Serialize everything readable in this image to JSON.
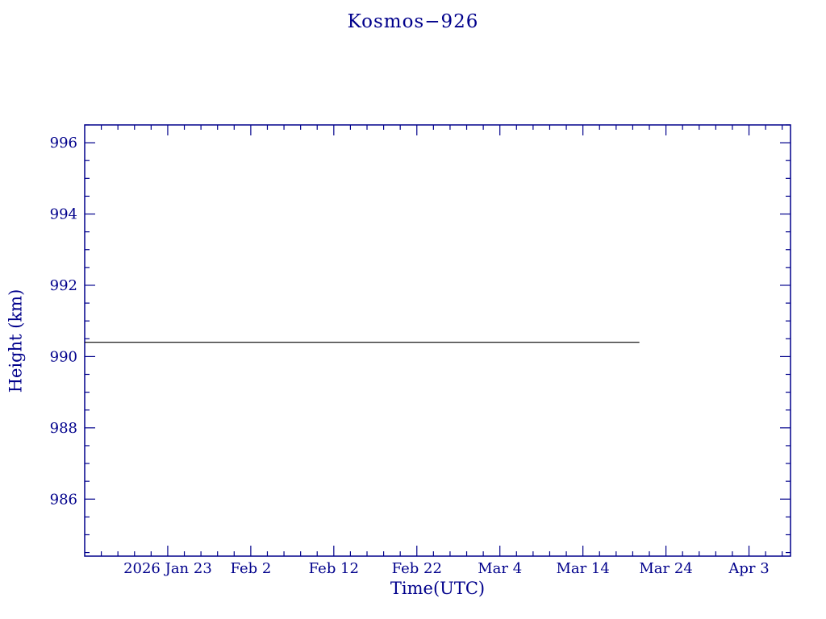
{
  "window": {
    "background": "#ffffff"
  },
  "chart_data": {
    "type": "line",
    "title": "Kosmos−926",
    "xlabel": "Time(UTC)",
    "ylabel": "Height (km)",
    "axis_color": "#00008b",
    "text_color": "#00008b",
    "grid": false,
    "legend": false,
    "x_unit": "days from plot left edge (tick '2026 Jan 23' = day 10)",
    "x_domain_days": [
      0,
      85
    ],
    "x_minor_step": 2,
    "x_ticks": [
      {
        "day": 10,
        "label": "2026 Jan 23"
      },
      {
        "day": 20,
        "label": "Feb 2"
      },
      {
        "day": 30,
        "label": "Feb 12"
      },
      {
        "day": 40,
        "label": "Feb 22"
      },
      {
        "day": 50,
        "label": "Mar 4"
      },
      {
        "day": 60,
        "label": "Mar 14"
      },
      {
        "day": 70,
        "label": "Mar 24"
      },
      {
        "day": 80,
        "label": "Apr 3"
      }
    ],
    "y_domain": [
      984.4,
      996.5
    ],
    "y_minor_step": 0.5,
    "y_ticks": [
      986,
      988,
      990,
      992,
      994,
      996
    ],
    "series": [
      {
        "name": "orbit-height",
        "color": "#000000",
        "height_km": 990.4,
        "points": [
          {
            "x": 0,
            "y": 990.4
          },
          {
            "x": 66.8,
            "y": 990.4
          }
        ]
      }
    ]
  }
}
